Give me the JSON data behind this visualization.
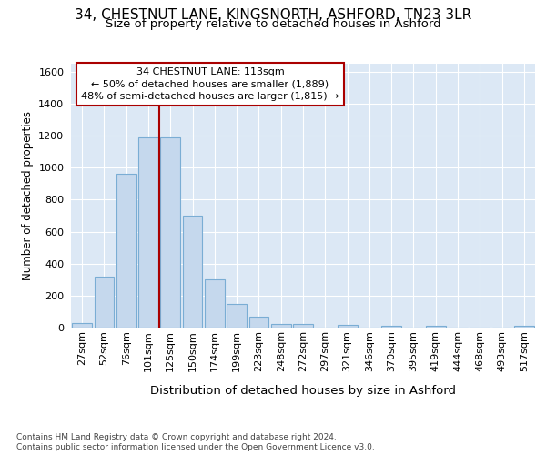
{
  "title_line1": "34, CHESTNUT LANE, KINGSNORTH, ASHFORD, TN23 3LR",
  "title_line2": "Size of property relative to detached houses in Ashford",
  "xlabel": "Distribution of detached houses by size in Ashford",
  "ylabel": "Number of detached properties",
  "footer_line1": "Contains HM Land Registry data © Crown copyright and database right 2024.",
  "footer_line2": "Contains public sector information licensed under the Open Government Licence v3.0.",
  "annotation_line1": "34 CHESTNUT LANE: 113sqm",
  "annotation_line2": "← 50% of detached houses are smaller (1,889)",
  "annotation_line3": "48% of semi-detached houses are larger (1,815) →",
  "bar_labels": [
    "27sqm",
    "52sqm",
    "76sqm",
    "101sqm",
    "125sqm",
    "150sqm",
    "174sqm",
    "199sqm",
    "223sqm",
    "248sqm",
    "272sqm",
    "297sqm",
    "321sqm",
    "346sqm",
    "370sqm",
    "395sqm",
    "419sqm",
    "444sqm",
    "468sqm",
    "493sqm",
    "517sqm"
  ],
  "bar_values": [
    30,
    320,
    960,
    1190,
    1190,
    700,
    300,
    150,
    70,
    20,
    20,
    0,
    15,
    0,
    10,
    0,
    10,
    0,
    0,
    0,
    10
  ],
  "bar_color": "#c5d8ed",
  "bar_edge_color": "#7aadd4",
  "vline_color": "#aa0000",
  "vline_pos": 3.5,
  "annotation_box_edgecolor": "#aa0000",
  "ylim_max": 1650,
  "yticks": [
    0,
    200,
    400,
    600,
    800,
    1000,
    1200,
    1400,
    1600
  ],
  "bg_color": "#dce8f5",
  "grid_color": "#ffffff",
  "fig_bg": "#ffffff",
  "title1_fontsize": 11,
  "title2_fontsize": 9.5,
  "xlabel_fontsize": 9.5,
  "ylabel_fontsize": 8.5,
  "tick_fontsize": 8,
  "annot_fontsize": 8,
  "footer_fontsize": 6.5
}
